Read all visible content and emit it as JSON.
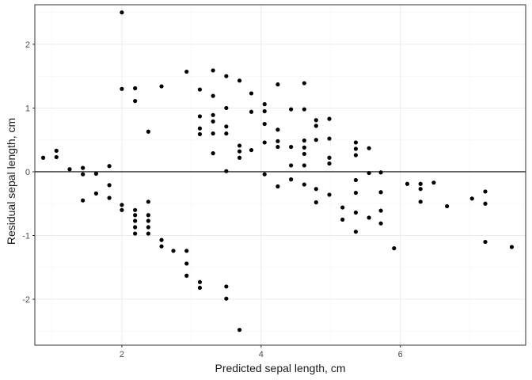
{
  "chart_data": {
    "type": "scatter",
    "xlabel": "Predicted sepal length, cm",
    "ylabel": "Residual sepal length, cm",
    "xlim": [
      0.75,
      7.8
    ],
    "ylim": [
      -2.72,
      2.62
    ],
    "x_ticks": [
      2,
      4,
      6
    ],
    "y_ticks": [
      -2,
      -1,
      0,
      1,
      2
    ],
    "x_tick_labels": [
      "2",
      "4",
      "6"
    ],
    "y_tick_labels": [
      "-2",
      "-1",
      "0",
      "1",
      "2"
    ],
    "hline": 0,
    "grid": true,
    "colors": {
      "point": "#000000",
      "grid_major": "#ebebeb",
      "grid_minor": "#f5f5f5",
      "panel_border": "#333333",
      "reference_line": "#000000"
    },
    "points": [
      [
        0.87,
        0.22
      ],
      [
        1.06,
        0.33
      ],
      [
        1.06,
        0.23
      ],
      [
        1.25,
        0.04
      ],
      [
        1.44,
        0.06
      ],
      [
        1.44,
        -0.04
      ],
      [
        1.44,
        -0.45
      ],
      [
        1.63,
        -0.03
      ],
      [
        1.63,
        -0.34
      ],
      [
        1.82,
        0.09
      ],
      [
        1.82,
        -0.21
      ],
      [
        1.82,
        -0.41
      ],
      [
        2.0,
        2.5
      ],
      [
        2.0,
        1.3
      ],
      [
        2.0,
        -0.52
      ],
      [
        2.0,
        -0.6
      ],
      [
        2.19,
        1.31
      ],
      [
        2.19,
        1.11
      ],
      [
        2.19,
        -0.6
      ],
      [
        2.19,
        -0.68
      ],
      [
        2.19,
        -0.77
      ],
      [
        2.19,
        -0.87
      ],
      [
        2.19,
        -0.97
      ],
      [
        2.38,
        0.63
      ],
      [
        2.38,
        -0.47
      ],
      [
        2.38,
        -0.68
      ],
      [
        2.38,
        -0.77
      ],
      [
        2.38,
        -0.87
      ],
      [
        2.38,
        -0.97
      ],
      [
        2.57,
        1.34
      ],
      [
        2.57,
        -1.07
      ],
      [
        2.57,
        -1.17
      ],
      [
        2.74,
        -1.24
      ],
      [
        2.93,
        1.57
      ],
      [
        2.93,
        -1.24
      ],
      [
        2.93,
        -1.44
      ],
      [
        2.93,
        -1.63
      ],
      [
        3.12,
        1.29
      ],
      [
        3.12,
        0.87
      ],
      [
        3.12,
        0.68
      ],
      [
        3.12,
        0.59
      ],
      [
        3.12,
        -1.73
      ],
      [
        3.12,
        -1.82
      ],
      [
        3.31,
        1.59
      ],
      [
        3.31,
        1.19
      ],
      [
        3.31,
        0.89
      ],
      [
        3.31,
        0.79
      ],
      [
        3.31,
        0.6
      ],
      [
        3.31,
        0.29
      ],
      [
        3.5,
        1.5
      ],
      [
        3.5,
        1.0
      ],
      [
        3.5,
        0.71
      ],
      [
        3.5,
        0.6
      ],
      [
        3.5,
        0.01
      ],
      [
        3.5,
        -1.8
      ],
      [
        3.5,
        -1.99
      ],
      [
        3.69,
        1.43
      ],
      [
        3.69,
        0.41
      ],
      [
        3.69,
        0.32
      ],
      [
        3.69,
        0.22
      ],
      [
        3.69,
        -2.48
      ],
      [
        3.86,
        1.23
      ],
      [
        3.86,
        0.94
      ],
      [
        3.86,
        0.34
      ],
      [
        4.05,
        1.06
      ],
      [
        4.05,
        0.95
      ],
      [
        4.05,
        0.75
      ],
      [
        4.05,
        0.46
      ],
      [
        4.05,
        -0.04
      ],
      [
        4.24,
        1.37
      ],
      [
        4.24,
        0.66
      ],
      [
        4.24,
        0.48
      ],
      [
        4.24,
        0.39
      ],
      [
        4.24,
        -0.23
      ],
      [
        4.43,
        0.98
      ],
      [
        4.43,
        0.39
      ],
      [
        4.43,
        0.1
      ],
      [
        4.43,
        -0.12
      ],
      [
        4.62,
        1.39
      ],
      [
        4.62,
        0.98
      ],
      [
        4.62,
        0.49
      ],
      [
        4.62,
        0.38
      ],
      [
        4.62,
        0.28
      ],
      [
        4.62,
        0.1
      ],
      [
        4.62,
        -0.2
      ],
      [
        4.79,
        0.81
      ],
      [
        4.79,
        0.72
      ],
      [
        4.79,
        0.5
      ],
      [
        4.79,
        -0.27
      ],
      [
        4.79,
        -0.48
      ],
      [
        4.98,
        0.83
      ],
      [
        4.98,
        0.52
      ],
      [
        4.98,
        0.22
      ],
      [
        4.98,
        0.13
      ],
      [
        4.98,
        -0.36
      ],
      [
        5.17,
        -0.56
      ],
      [
        5.17,
        -0.75
      ],
      [
        5.36,
        0.46
      ],
      [
        5.36,
        0.36
      ],
      [
        5.36,
        0.26
      ],
      [
        5.36,
        -0.13
      ],
      [
        5.36,
        -0.33
      ],
      [
        5.36,
        -0.64
      ],
      [
        5.36,
        -0.94
      ],
      [
        5.55,
        0.37
      ],
      [
        5.55,
        -0.02
      ],
      [
        5.55,
        -0.72
      ],
      [
        5.72,
        -0.01
      ],
      [
        5.72,
        -0.32
      ],
      [
        5.72,
        -0.61
      ],
      [
        5.72,
        -0.81
      ],
      [
        5.91,
        -1.2
      ],
      [
        6.1,
        -0.19
      ],
      [
        6.29,
        -0.19
      ],
      [
        6.29,
        -0.27
      ],
      [
        6.29,
        -0.47
      ],
      [
        6.48,
        -0.17
      ],
      [
        6.67,
        -0.54
      ],
      [
        7.03,
        -0.42
      ],
      [
        7.22,
        -0.31
      ],
      [
        7.22,
        -0.5
      ],
      [
        7.22,
        -1.1
      ],
      [
        7.6,
        -1.18
      ]
    ]
  }
}
